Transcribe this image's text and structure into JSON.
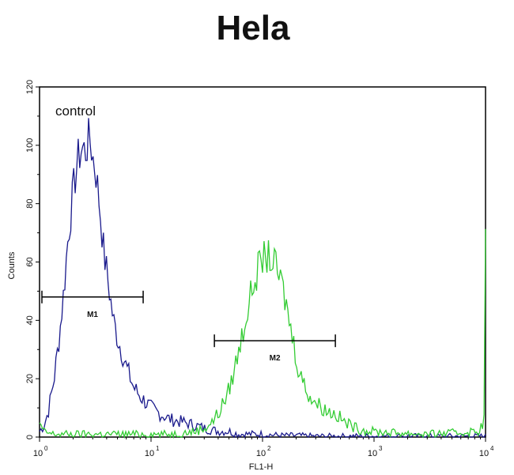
{
  "chart_data": {
    "type": "line",
    "title": "Hela",
    "xlabel": "FL1-H",
    "ylabel": "Counts",
    "xscale": "log",
    "xlim": [
      1,
      10000
    ],
    "ylim": [
      0,
      120
    ],
    "xticks": [
      {
        "value": 1,
        "base": "10",
        "exp": "0"
      },
      {
        "value": 10,
        "base": "10",
        "exp": "1"
      },
      {
        "value": 100,
        "base": "10",
        "exp": "2"
      },
      {
        "value": 1000,
        "base": "10",
        "exp": "3"
      },
      {
        "value": 10000,
        "base": "10",
        "exp": "4"
      }
    ],
    "yticks": [
      "0",
      "20",
      "40",
      "60",
      "80",
      "100",
      "120"
    ],
    "grid": false,
    "annotations": [
      {
        "text": "control"
      }
    ],
    "series": [
      {
        "color": "#1a1a8c",
        "x": [
          1.0,
          1.1,
          1.2,
          1.35,
          1.5,
          1.65,
          1.8,
          2.0,
          2.2,
          2.4,
          2.6,
          2.8,
          2.9,
          3.0,
          3.2,
          3.4,
          3.6,
          3.8,
          4.0,
          4.3,
          4.6,
          5.0,
          5.5,
          6.0,
          7.0,
          8.0,
          10,
          12,
          15,
          20,
          25,
          30,
          40,
          50,
          60,
          80,
          100,
          150,
          200,
          300,
          500,
          1000,
          3000,
          10000
        ],
        "y": [
          2,
          4,
          9,
          20,
          34,
          50,
          68,
          84,
          95,
          99,
          98,
          103,
          100,
          96,
          91,
          82,
          72,
          62,
          57,
          48,
          40,
          34,
          29,
          24,
          17,
          14,
          10,
          8,
          6,
          5,
          4,
          3,
          2,
          2,
          1,
          1,
          1,
          0.5,
          0.5,
          0.3,
          0.3,
          0.3,
          0.3,
          0.3
        ]
      },
      {
        "color": "#33cc33",
        "x": [
          1.0,
          1.01,
          1.05,
          1.3,
          2,
          3,
          5,
          10,
          15,
          20,
          25,
          30,
          35,
          40,
          45,
          50,
          60,
          70,
          80,
          90,
          100,
          110,
          120,
          135,
          150,
          170,
          190,
          210,
          240,
          280,
          320,
          380,
          450,
          550,
          700,
          900,
          1500,
          3000,
          6000,
          8500,
          9500,
          9800,
          9950,
          10000
        ],
        "y": [
          4,
          7,
          2,
          1,
          1,
          1,
          1,
          1,
          1,
          1.5,
          2,
          3,
          5,
          8,
          12,
          16,
          28,
          40,
          50,
          57,
          61,
          62,
          61,
          57,
          52,
          42,
          32,
          24,
          17,
          13,
          11,
          9,
          8,
          5,
          3,
          2,
          1.5,
          1,
          1.5,
          2,
          4,
          8,
          30,
          70
        ]
      }
    ],
    "markers": [
      {
        "label": "M1",
        "x_start": 1.05,
        "x_end": 8.5,
        "y": 48
      },
      {
        "label": "M2",
        "x_start": 37,
        "x_end": 450,
        "y": 33
      }
    ]
  }
}
